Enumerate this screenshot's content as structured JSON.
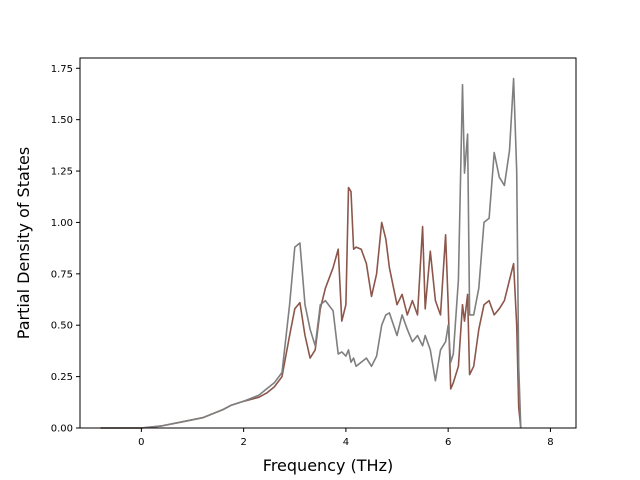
{
  "chart_data": {
    "type": "line",
    "title": "",
    "xlabel": "Frequency (THz)",
    "ylabel": "Partial Density of States",
    "xlim": [
      -1.2,
      8.5
    ],
    "ylim": [
      0.0,
      1.8
    ],
    "xticks": [
      "0",
      "2",
      "4",
      "6",
      "8"
    ],
    "yticks": [
      "0.00",
      "0.25",
      "0.50",
      "0.75",
      "1.00",
      "1.25",
      "1.50",
      "1.75"
    ],
    "grid": false,
    "legend": "none",
    "series": [
      {
        "color": "#8c564b",
        "x": [
          -0.8,
          0.0,
          0.4,
          0.8,
          1.2,
          1.6,
          1.75,
          2.0,
          2.3,
          2.45,
          2.6,
          2.75,
          2.9,
          3.0,
          3.1,
          3.2,
          3.3,
          3.4,
          3.5,
          3.6,
          3.75,
          3.85,
          3.92,
          4.0,
          4.05,
          4.1,
          4.15,
          4.2,
          4.3,
          4.4,
          4.5,
          4.6,
          4.7,
          4.78,
          4.85,
          5.0,
          5.1,
          5.2,
          5.3,
          5.4,
          5.5,
          5.55,
          5.65,
          5.75,
          5.85,
          5.95,
          6.0,
          6.05,
          6.1,
          6.2,
          6.28,
          6.32,
          6.38,
          6.42,
          6.5,
          6.6,
          6.7,
          6.8,
          6.9,
          7.0,
          7.1,
          7.2,
          7.28,
          7.34,
          7.38,
          7.42
        ],
        "y": [
          0.0,
          0.0,
          0.01,
          0.03,
          0.05,
          0.09,
          0.11,
          0.13,
          0.15,
          0.17,
          0.2,
          0.25,
          0.45,
          0.58,
          0.61,
          0.45,
          0.34,
          0.38,
          0.58,
          0.68,
          0.78,
          0.87,
          0.52,
          0.6,
          1.17,
          1.15,
          0.87,
          0.88,
          0.87,
          0.8,
          0.64,
          0.75,
          1.0,
          0.92,
          0.78,
          0.6,
          0.65,
          0.55,
          0.62,
          0.55,
          0.98,
          0.58,
          0.86,
          0.62,
          0.55,
          0.94,
          0.6,
          0.19,
          0.22,
          0.3,
          0.6,
          0.52,
          0.65,
          0.26,
          0.3,
          0.48,
          0.6,
          0.62,
          0.55,
          0.58,
          0.62,
          0.72,
          0.8,
          0.5,
          0.1,
          0.0
        ]
      },
      {
        "color": "#7f7f7f",
        "x": [
          -0.8,
          0.0,
          0.4,
          0.8,
          1.2,
          1.6,
          1.75,
          2.0,
          2.3,
          2.45,
          2.6,
          2.75,
          2.9,
          3.0,
          3.1,
          3.2,
          3.3,
          3.4,
          3.5,
          3.6,
          3.75,
          3.85,
          3.92,
          4.0,
          4.05,
          4.1,
          4.15,
          4.2,
          4.3,
          4.4,
          4.5,
          4.6,
          4.7,
          4.78,
          4.85,
          5.0,
          5.1,
          5.2,
          5.3,
          5.4,
          5.5,
          5.55,
          5.65,
          5.75,
          5.85,
          5.95,
          6.0,
          6.05,
          6.1,
          6.2,
          6.28,
          6.32,
          6.38,
          6.42,
          6.5,
          6.6,
          6.7,
          6.8,
          6.9,
          7.0,
          7.1,
          7.2,
          7.28,
          7.34,
          7.38,
          7.42
        ],
        "y": [
          0.0,
          0.0,
          0.01,
          0.03,
          0.05,
          0.09,
          0.11,
          0.13,
          0.16,
          0.19,
          0.22,
          0.27,
          0.6,
          0.88,
          0.9,
          0.6,
          0.48,
          0.4,
          0.6,
          0.62,
          0.57,
          0.36,
          0.37,
          0.35,
          0.38,
          0.32,
          0.34,
          0.3,
          0.32,
          0.34,
          0.3,
          0.35,
          0.5,
          0.55,
          0.56,
          0.45,
          0.55,
          0.48,
          0.42,
          0.45,
          0.4,
          0.45,
          0.38,
          0.23,
          0.38,
          0.42,
          0.5,
          0.32,
          0.36,
          0.72,
          1.67,
          1.24,
          1.43,
          0.55,
          0.55,
          0.68,
          1.0,
          1.02,
          1.34,
          1.22,
          1.18,
          1.35,
          1.7,
          1.25,
          0.3,
          0.0
        ]
      }
    ]
  }
}
